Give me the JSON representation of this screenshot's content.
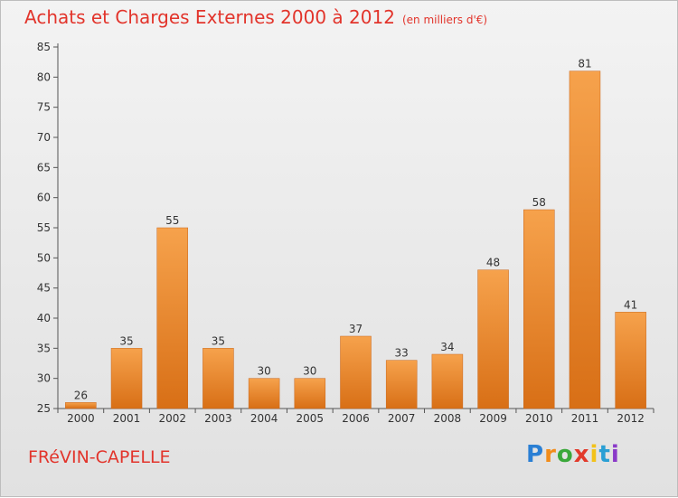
{
  "title": "Achats et Charges Externes 2000 à 2012",
  "unit_label": "(en milliers d'€)",
  "commune": "FRéVIN-CAPELLE",
  "brand": "Proxiti",
  "colors": {
    "title": "#e2342b",
    "bar_top": "#f6a24c",
    "bar_bottom": "#d86f16",
    "axis": "#555555",
    "grid": "#cfcfcf"
  },
  "chart_data": {
    "type": "bar",
    "categories": [
      "2000",
      "2001",
      "2002",
      "2003",
      "2004",
      "2005",
      "2006",
      "2007",
      "2008",
      "2009",
      "2010",
      "2011",
      "2012"
    ],
    "values": [
      26,
      35,
      55,
      35,
      30,
      30,
      37,
      33,
      34,
      48,
      58,
      81,
      41
    ],
    "ylim": [
      25,
      85
    ],
    "yticks": [
      25,
      30,
      35,
      40,
      45,
      50,
      55,
      60,
      65,
      70,
      75,
      80,
      85
    ],
    "data_labels": true,
    "grid": false
  }
}
